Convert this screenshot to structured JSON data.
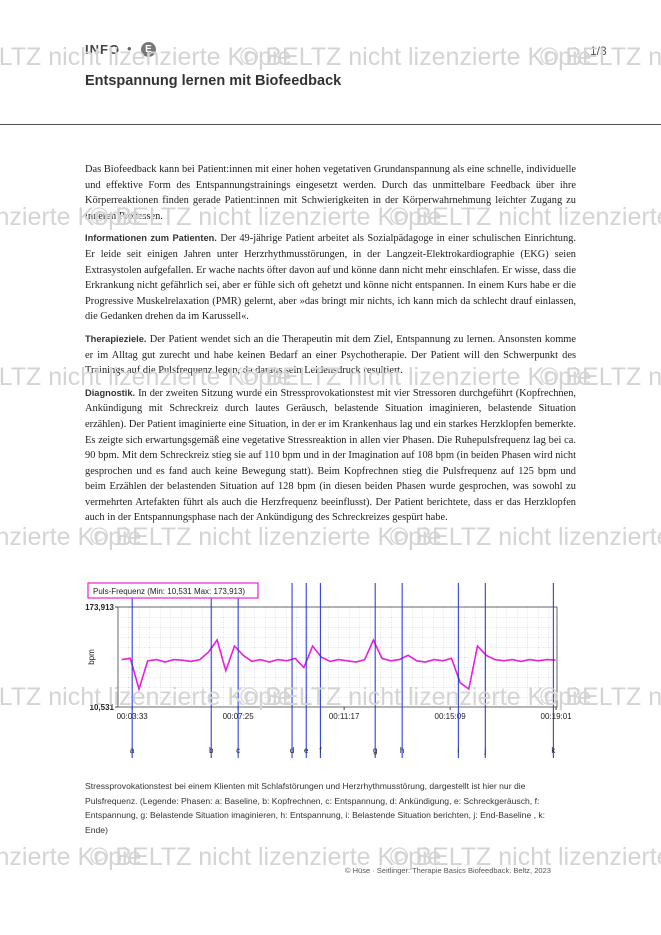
{
  "header": {
    "label": "INFO",
    "badge": "E",
    "page": "1/3",
    "title": "Entspannung lernen mit Biofeedback"
  },
  "watermark": "© BELTZ nicht lizenzierte Kopie",
  "paragraphs": [
    {
      "text": "Das Biofeedback kann bei Patient:innen mit einer hohen vegetativen Grundanspannung als eine schnelle, individuelle und effektive Form des Entspannungstrainings eingesetzt werden. Durch das unmittelbare Feedback über ihre Körperreaktionen finden gerade Patient:innen mit Schwierigkeiten in der Körperwahrnehmung leichter Zugang zu inneren Prozessen."
    },
    {
      "heading": "Informationen zum Patienten.",
      "text": "Der 49-jährige Patient arbeitet als Sozialpädagoge in einer schulischen Einrichtung. Er leide seit einigen Jahren unter Herzrhythmusstörungen, in der Langzeit-Elektrokardiographie (EKG) seien Extrasystolen aufgefallen. Er wache nachts öfter davon auf und könne dann nicht mehr einschlafen. Er wisse, dass die Erkrankung nicht gefährlich sei, aber er fühle sich oft gehetzt und könne nicht entspannen. In einem Kurs habe er die Progressive Muskelrelaxation (PMR) gelernt, aber »das bringt mir nichts, ich kann mich da schlecht drauf einlassen, die Gedanken drehen da im Karussell«."
    },
    {
      "heading": "Therapieziele.",
      "text": "Der Patient wendet sich an die Therapeutin mit dem Ziel, Entspannung zu lernen. Ansonsten komme er im Alltag gut zurecht und habe keinen Bedarf an einer Psychotherapie. Der Patient will den Schwerpunkt des Trainings auf die Pulsfrequenz legen, da daraus sein Leidensdruck resultiert."
    },
    {
      "heading": "Diagnostik.",
      "text": "In der zweiten Sitzung wurde ein Stressprovokationstest mit vier Stressoren durchgeführt (Kopfrechnen, Ankündigung mit Schreckreiz durch lautes Geräusch, belastende Situation imaginieren, belastende Situation erzählen). Der Patient imaginierte eine Situation, in der er im Krankenhaus lag und ein starkes Herzklopfen bemerkte. Es zeigte sich erwartungsgemäß eine vegetative Stressreaktion in allen vier Phasen. Die Ruhepulsfrequenz lag bei ca. 90 bpm. Mit dem Schreckreiz stieg sie auf 110 bpm und in der Imagination auf 108 bpm (in beiden Phasen wird nicht gesprochen und es fand auch keine Bewegung statt). Beim Kopfrechnen stieg die Pulsfrequenz auf 125 bpm und beim Erzählen der belastenden Situation auf 128 bpm (in diesen beiden Phasen wurde gesprochen, was sowohl zu vermehrten Artefakten führt als auch die Herzfrequenz beeinflusst). Der Patient berichtete, dass er das Herzklopfen auch in der Entspannungsphase nach der Ankündigung des Schreckreizes gespürt habe."
    }
  ],
  "figure": {
    "legend": "Puls-Frequenz (Min: 10,531 Max: 173,913)",
    "ylabel": "bpm",
    "color": "#e81ee0",
    "ylim": [
      10.531,
      173.913
    ],
    "yticks": [
      {
        "value": 173.913,
        "label": "173,913"
      },
      {
        "value": 10.531,
        "label": "10,531"
      }
    ],
    "xlim": [
      182,
      1143
    ],
    "xticks": [
      {
        "value": 213,
        "label": "00:03:33"
      },
      {
        "value": 445,
        "label": "00:07:25"
      },
      {
        "value": 677,
        "label": "00:11:17"
      },
      {
        "value": 909,
        "label": "00:15:09"
      },
      {
        "value": 1141,
        "label": "00:19:01"
      }
    ],
    "markers": [
      {
        "label": "a",
        "x": 213
      },
      {
        "label": "b",
        "x": 386
      },
      {
        "label": "c",
        "x": 445
      },
      {
        "label": "d",
        "x": 563
      },
      {
        "label": "e",
        "x": 594
      },
      {
        "label": "f",
        "x": 625
      },
      {
        "label": "g",
        "x": 745
      },
      {
        "label": "h",
        "x": 804
      },
      {
        "label": "i",
        "x": 927
      },
      {
        "label": "j",
        "x": 986
      },
      {
        "label": "k",
        "x": 1135
      }
    ],
    "x": [
      190,
      209,
      228,
      247,
      266,
      285,
      304,
      323,
      342,
      361,
      380,
      399,
      418,
      437,
      456,
      475,
      494,
      513,
      532,
      551,
      570,
      589,
      608,
      627,
      646,
      665,
      684,
      703,
      722,
      741,
      760,
      779,
      798,
      817,
      836,
      855,
      874,
      893,
      912,
      931,
      950,
      969,
      988,
      1007,
      1026,
      1045,
      1064,
      1083,
      1102,
      1121,
      1140
    ],
    "values": [
      88,
      90,
      40,
      86,
      88,
      84,
      88,
      87,
      85,
      88,
      100,
      120,
      70,
      110,
      95,
      85,
      88,
      84,
      88,
      86,
      90,
      75,
      110,
      92,
      85,
      88,
      86,
      84,
      88,
      120,
      90,
      86,
      88,
      95,
      86,
      84,
      88,
      86,
      90,
      50,
      40,
      110,
      95,
      88,
      86,
      88,
      85,
      88,
      86,
      88,
      87
    ],
    "caption": "Stressprovokationstest bei einem Klienten mit Schlafstörungen und Herzrhythmusstörung, dargestellt ist hier nur die Pulsfrequenz. (Legende: Phasen: a: Baseline, b: Kopfrechnen, c: Entspannung, d: Ankündigung, e: Schreckgeräusch, f: Entspannung, g: Belastende Situation imaginieren, h: Entspannung, i: Belastende Situation berichten, j: End-Baseline , k: Ende)"
  },
  "footer": "© Hüse · Seitlinger: Therapie Basics Biofeedback. Beltz, 2023"
}
